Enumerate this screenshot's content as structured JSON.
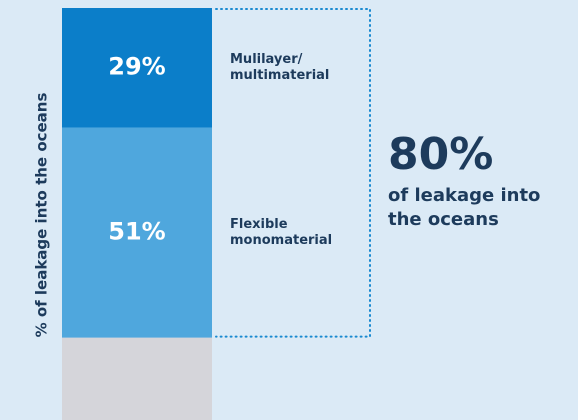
{
  "chart_data": {
    "type": "stacked-bar",
    "y_label": "% of leakage into the oceans",
    "ylim": [
      0,
      100
    ],
    "series": [
      {
        "color": "#d5d5da",
        "values": [
          20
        ]
      },
      {
        "name": "Flexible monomaterial",
        "color": "#4fa7dd",
        "values": [
          51
        ],
        "value_labels": [
          "51%"
        ]
      },
      {
        "name": "Mulilayer/ multimaterial",
        "color": "#0b7ec9",
        "values": [
          29
        ],
        "value_labels": [
          "29%"
        ]
      }
    ],
    "annotations": [
      "80%",
      "of leakage into the oceans"
    ]
  }
}
